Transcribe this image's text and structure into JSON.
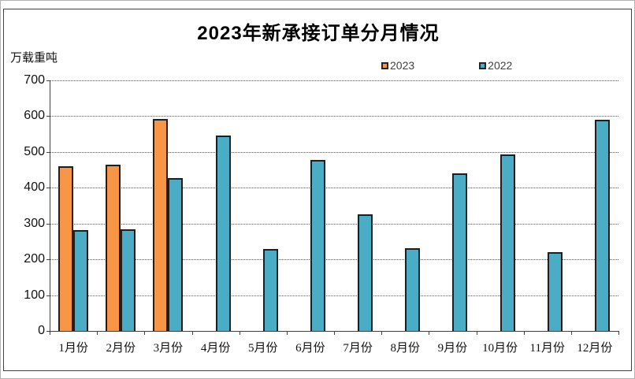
{
  "chart": {
    "title": "2023年新承接订单分月情况",
    "unit_label": "万载重吨"
  },
  "legend": {
    "items": [
      {
        "label": "2023",
        "color": "#F79646"
      },
      {
        "label": "2022",
        "color": "#4BACC6"
      }
    ]
  },
  "chart_data": {
    "type": "bar",
    "title": "2023年新承接订单分月情况",
    "xlabel": "",
    "ylabel": "万载重吨",
    "categories": [
      "1月份",
      "2月份",
      "3月份",
      "4月份",
      "5月份",
      "6月份",
      "7月份",
      "8月份",
      "9月份",
      "10月份",
      "11月份",
      "12月份"
    ],
    "series": [
      {
        "name": "2023",
        "color": "#F79646",
        "values": [
          461,
          464,
          593,
          null,
          null,
          null,
          null,
          null,
          null,
          null,
          null,
          null
        ]
      },
      {
        "name": "2022",
        "color": "#4BACC6",
        "values": [
          281,
          284,
          428,
          546,
          230,
          477,
          326,
          232,
          440,
          494,
          220,
          591
        ]
      }
    ],
    "ylim": [
      0,
      700
    ],
    "yticks": [
      0,
      100,
      200,
      300,
      400,
      500,
      600,
      700
    ],
    "grid": "horizontal-dotted",
    "legend_position": "top",
    "bar_border_color": "#1f1f1f",
    "background": "#ffffff"
  }
}
